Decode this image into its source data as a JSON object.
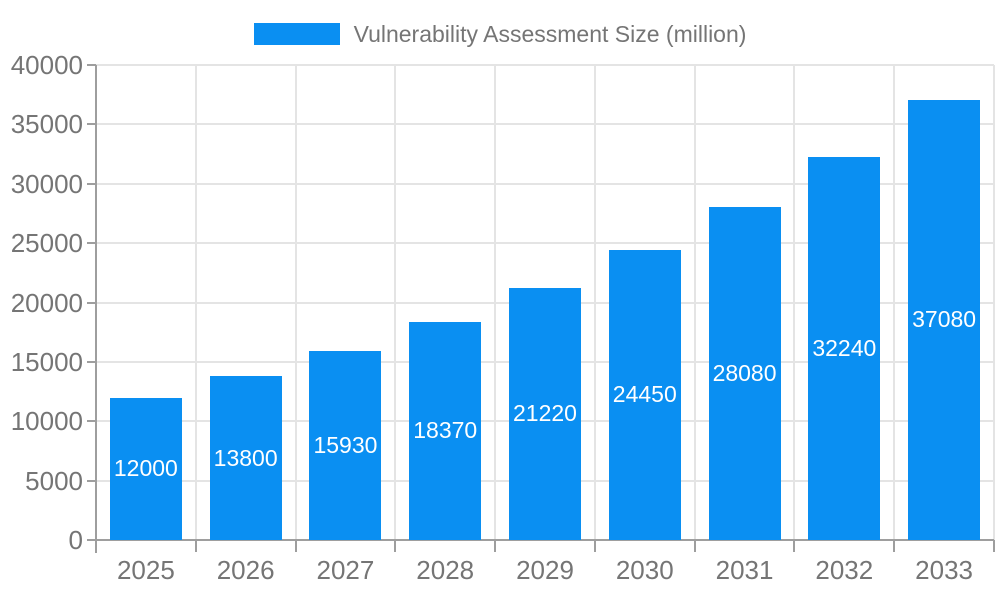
{
  "chart_data": {
    "type": "bar",
    "title": "Vulnerability Assessment Size (million)",
    "categories": [
      "2025",
      "2026",
      "2027",
      "2028",
      "2029",
      "2030",
      "2031",
      "2032",
      "2033"
    ],
    "values": [
      12000,
      13800,
      15930,
      18370,
      21220,
      24450,
      28080,
      32240,
      37080
    ],
    "xlabel": "",
    "ylabel": "",
    "ylim": [
      0,
      40000
    ],
    "yticks": [
      0,
      5000,
      10000,
      15000,
      20000,
      25000,
      30000,
      35000,
      40000
    ],
    "grid": true,
    "legend_position": "top-center",
    "legend": {
      "label": "Vulnerability Assessment Size (million)"
    },
    "colors": {
      "bar": "#0a8ff2",
      "bar_label": "#ffffff",
      "axis_line": "#9e9e9e",
      "gridline": "#e4e4e4",
      "tick_label": "#757575",
      "background": "#ffffff"
    }
  }
}
